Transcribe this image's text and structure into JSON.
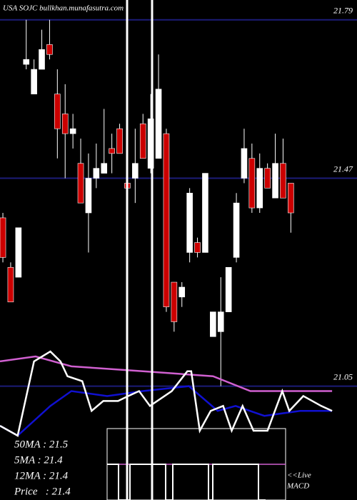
{
  "chart_data": {
    "type": "candlestick",
    "title": "USA SOJC bullkhan.munafasutra.com",
    "ylim": [
      20.82,
      21.83
    ],
    "yticks": [
      21.05,
      21.47,
      21.79
    ],
    "xlim": [
      -0.37,
      45.5
    ],
    "grid": true,
    "up_color": "#ffffff",
    "down_color": "#cc0000",
    "grid_color": "#1c1c78",
    "open": [
      21.39,
      21.29,
      21.27,
      21.7,
      21.64,
      21.69,
      21.74,
      21.64,
      21.6,
      21.56,
      21.5,
      21.4,
      21.47,
      21.48,
      21.53,
      21.57,
      21.46,
      21.47,
      21.58,
      21.49,
      21.51,
      21.56,
      21.26,
      21.23,
      21.32,
      21.34,
      21.32,
      21.15,
      21.16,
      21.2,
      21.31,
      21.47,
      21.51,
      21.41,
      21.49,
      21.43,
      21.5,
      21.46
    ],
    "high": [
      21.4,
      21.3,
      21.37,
      21.79,
      21.71,
      21.77,
      21.79,
      21.69,
      21.66,
      21.6,
      21.55,
      21.52,
      21.54,
      21.61,
      21.56,
      21.58,
      21.51,
      21.57,
      21.6,
      21.64,
      21.72,
      21.57,
      21.26,
      21.26,
      21.45,
      21.35,
      21.48,
      21.2,
      21.27,
      21.29,
      21.44,
      21.57,
      21.54,
      21.52,
      21.5,
      21.56,
      21.55,
      21.46
    ],
    "low": [
      21.3,
      21.22,
      21.27,
      21.69,
      21.64,
      21.69,
      21.71,
      21.51,
      21.47,
      21.53,
      21.42,
      21.32,
      21.45,
      21.48,
      21.48,
      21.52,
      21.43,
      21.42,
      21.51,
      21.48,
      21.51,
      21.2,
      21.16,
      21.21,
      21.3,
      21.31,
      21.32,
      21.15,
      21.05,
      21.2,
      21.3,
      21.46,
      21.4,
      21.4,
      21.45,
      21.43,
      21.43,
      21.36
    ],
    "close": [
      21.31,
      21.22,
      21.37,
      21.71,
      21.69,
      21.73,
      21.72,
      21.57,
      21.56,
      21.57,
      21.42,
      21.47,
      21.49,
      21.5,
      21.52,
      21.52,
      21.45,
      21.5,
      21.51,
      21.59,
      21.65,
      21.21,
      21.18,
      21.25,
      21.44,
      21.32,
      21.48,
      21.2,
      21.2,
      21.29,
      21.42,
      21.53,
      21.41,
      21.49,
      21.45,
      21.5,
      21.43,
      21.4
    ],
    "lines": [
      {
        "color": "#d060d0",
        "x": [
          -0.37,
          4.2,
          8.8,
          18,
          27,
          31.8,
          42.3
        ],
        "values": [
          21.1,
          21.11,
          21.09,
          21.08,
          21.07,
          21.04,
          21.04
        ]
      },
      {
        "color": "#1010d0",
        "x": [
          -0.37,
          1.9,
          6.1,
          8.8,
          13.4,
          18,
          23.9,
          27.6,
          29.9,
          33.6,
          38.2,
          42.3
        ],
        "values": [
          20.97,
          20.95,
          21.01,
          21.04,
          21.03,
          21.04,
          21.05,
          21.0,
          21.01,
          20.99,
          21.0,
          21.0
        ]
      },
      {
        "color": "#ffffff",
        "x": [
          -0.37,
          1.9,
          4.0,
          6.1,
          7.4,
          8.3,
          10.2,
          11.4,
          12.9,
          14.8,
          16.1,
          17.5,
          18.9,
          21.7,
          23.7,
          24.2,
          25.3,
          26.7,
          28.3,
          29.4,
          30.8,
          32.2,
          34.0,
          35.9,
          36.8,
          38.6,
          40.9,
          42.3
        ],
        "values": [
          20.97,
          20.95,
          21.1,
          21.12,
          21.1,
          21.07,
          21.06,
          21.0,
          21.02,
          21.02,
          21.03,
          21.04,
          21.01,
          21.04,
          21.08,
          21.08,
          20.96,
          21.0,
          21.01,
          20.96,
          21.01,
          20.96,
          20.96,
          21.04,
          21.0,
          21.03,
          21.01,
          21.0
        ]
      }
    ],
    "legend": [
      "50MA : 21.5",
      "5MA : 21.4",
      "12MA : 21.4",
      "Price   : 21.4"
    ],
    "macd_label": [
      "<<Live",
      "MACD"
    ]
  }
}
